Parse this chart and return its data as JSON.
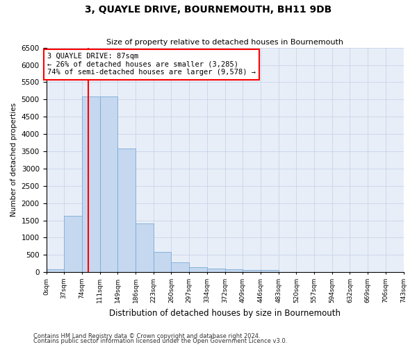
{
  "title": "3, QUAYLE DRIVE, BOURNEMOUTH, BH11 9DB",
  "subtitle": "Size of property relative to detached houses in Bournemouth",
  "xlabel": "Distribution of detached houses by size in Bournemouth",
  "ylabel": "Number of detached properties",
  "footnote1": "Contains HM Land Registry data © Crown copyright and database right 2024.",
  "footnote2": "Contains public sector information licensed under the Open Government Licence v3.0.",
  "bin_labels": [
    "0sqm",
    "37sqm",
    "74sqm",
    "111sqm",
    "149sqm",
    "186sqm",
    "223sqm",
    "260sqm",
    "297sqm",
    "334sqm",
    "372sqm",
    "409sqm",
    "446sqm",
    "483sqm",
    "520sqm",
    "557sqm",
    "594sqm",
    "632sqm",
    "669sqm",
    "706sqm",
    "743sqm"
  ],
  "bar_values": [
    75,
    1630,
    5080,
    5080,
    3570,
    1410,
    580,
    290,
    150,
    100,
    80,
    55,
    55,
    0,
    0,
    0,
    0,
    0,
    0,
    0
  ],
  "bar_color": "#c5d8f0",
  "bar_edge_color": "#7aaad4",
  "grid_color": "#c8d4e8",
  "vline_x": 87,
  "vline_color": "red",
  "annotation_text": "3 QUAYLE DRIVE: 87sqm\n← 26% of detached houses are smaller (3,285)\n74% of semi-detached houses are larger (9,578) →",
  "annotation_box_color": "white",
  "annotation_box_edge": "red",
  "ylim": [
    0,
    6500
  ],
  "yticks": [
    0,
    500,
    1000,
    1500,
    2000,
    2500,
    3000,
    3500,
    4000,
    4500,
    5000,
    5500,
    6000,
    6500
  ],
  "background_color": "#e8eef8",
  "bin_width": 37,
  "n_bars": 20
}
